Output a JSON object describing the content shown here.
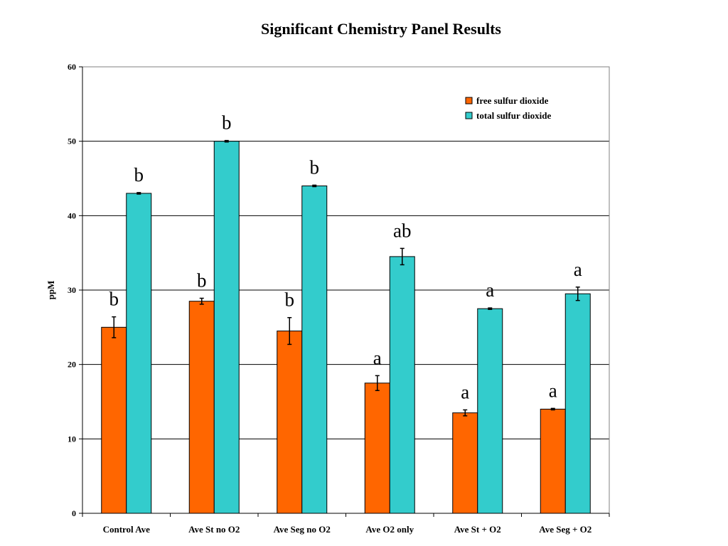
{
  "chart_data": {
    "type": "bar",
    "title": "Significant Chemistry Panel Results",
    "xlabel": "",
    "ylabel": "ppM",
    "ylim": [
      0,
      60
    ],
    "yticks": [
      0,
      10,
      20,
      30,
      40,
      50,
      60
    ],
    "grid": true,
    "legend_position": "top-right",
    "categories": [
      "Control Ave",
      "Ave St no O2",
      "Ave Seg no O2",
      "Ave O2 only",
      "Ave St + O2",
      "Ave Seg + O2"
    ],
    "series": [
      {
        "name": "free sulfur dioxide",
        "color": "#FF6600",
        "values": [
          25.0,
          28.5,
          24.5,
          17.5,
          13.5,
          14.0
        ],
        "errors": [
          1.4,
          0.4,
          1.8,
          1.0,
          0.4,
          0.1
        ],
        "labels": [
          "b",
          "b",
          "b",
          "a",
          "a",
          "a"
        ]
      },
      {
        "name": "total sulfur dioxide",
        "color": "#33CCCC",
        "values": [
          43.0,
          50.0,
          44.0,
          34.5,
          27.5,
          29.5
        ],
        "errors": [
          0.1,
          0.1,
          0.1,
          1.1,
          0.1,
          0.9
        ],
        "labels": [
          "b",
          "b",
          "b",
          "ab",
          "a",
          "a"
        ]
      }
    ]
  }
}
